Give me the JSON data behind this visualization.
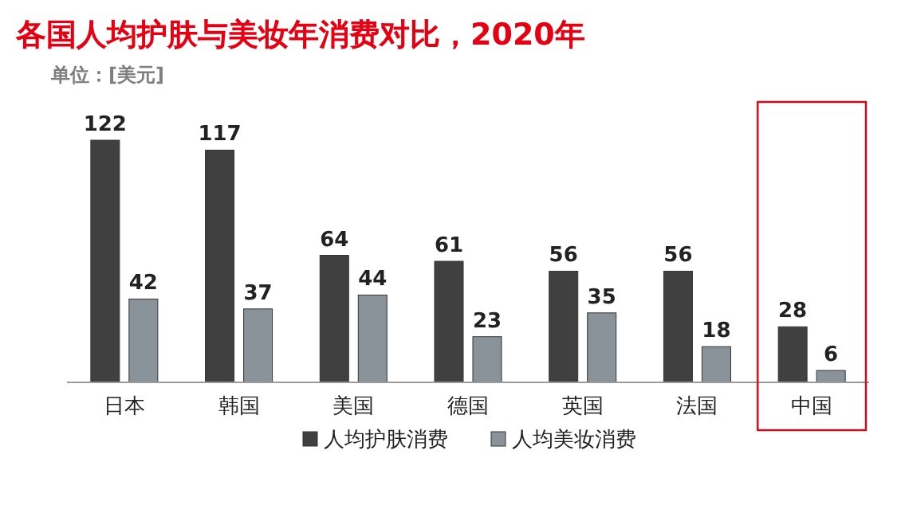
{
  "chart_data": {
    "type": "bar",
    "title": "各国人均护肤与美妆年消费对比，2020年",
    "subtitle": "单位：[美元]",
    "categories": [
      "日本",
      "韩国",
      "美国",
      "德国",
      "英国",
      "法国",
      "中国"
    ],
    "series": [
      {
        "name": "人均护肤消费",
        "color": "#404040",
        "values": [
          122,
          117,
          64,
          61,
          56,
          56,
          28
        ]
      },
      {
        "name": "人均美妆消费",
        "color": "#8a9399",
        "values": [
          42,
          37,
          44,
          23,
          35,
          18,
          6
        ]
      }
    ],
    "data_labels": true,
    "legend": "bottom"
  }
}
